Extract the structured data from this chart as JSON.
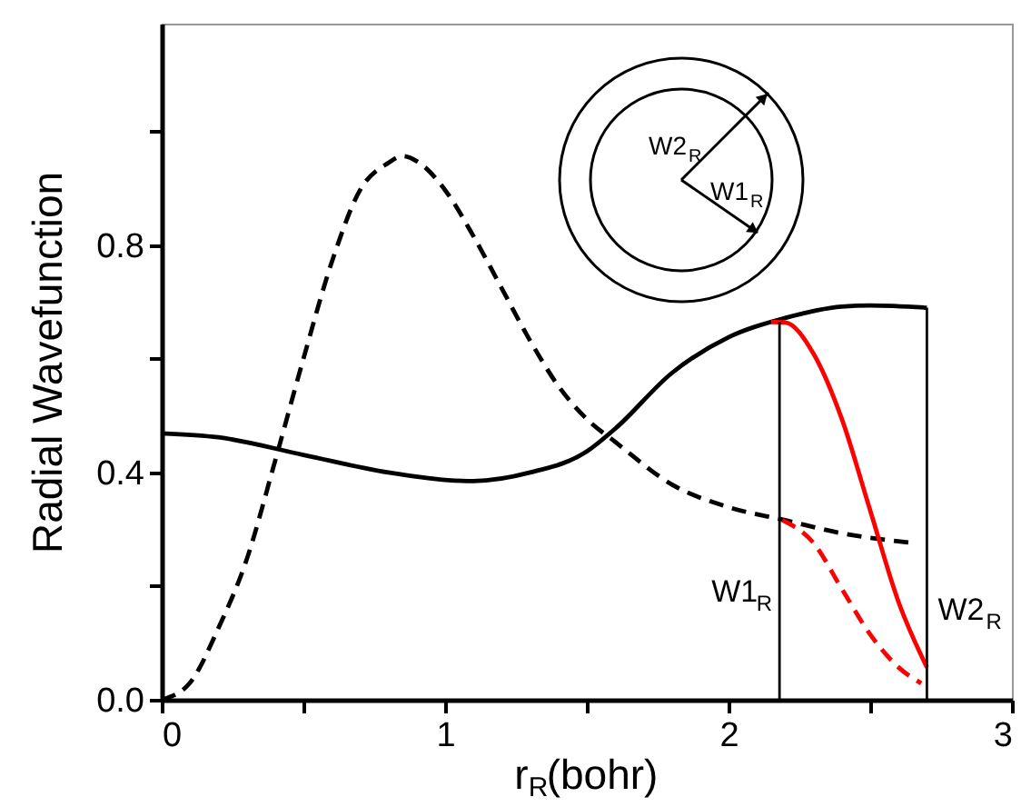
{
  "chart_data": {
    "type": "line",
    "xlabel": "r$_{R}$(bohr)",
    "ylabel": "Radial Wavefunction",
    "xlim": [
      0,
      3
    ],
    "xticks": [
      0,
      {
        "value": 0.5,
        "label": null
      },
      1,
      {
        "value": 1.5,
        "label": null
      },
      2,
      {
        "value": 2.5,
        "label": null
      },
      3
    ],
    "ylim": [
      0,
      1.19
    ],
    "yticks": [
      {
        "value": 0,
        "label": "0.0"
      },
      {
        "value": 0.2,
        "label": null
      },
      0.4,
      {
        "value": 0.6,
        "label": null
      },
      0.8,
      {
        "value": 1.0,
        "label": null
      }
    ],
    "grid": false,
    "annotations": [
      "W2$_{R}$",
      "W1$_{R}$"
    ],
    "series": [
      {
        "color": "#000000",
        "line_style": "solid",
        "x": [
          0,
          0.2,
          0.5,
          0.8,
          1.0,
          1.1,
          1.3,
          1.5,
          1.6,
          1.8,
          2.0,
          2.2,
          2.4,
          2.5,
          2.7
        ],
        "values": [
          0.469,
          0.462,
          0.431,
          0.4,
          0.387,
          0.385,
          0.4,
          0.437,
          0.477,
          0.575,
          0.638,
          0.672,
          0.692,
          0.694,
          0.69
        ]
      },
      {
        "color": "#000000",
        "line_style": "dashed",
        "x": [
          0,
          0.1,
          0.2,
          0.3,
          0.4,
          0.5,
          0.6,
          0.7,
          0.8,
          0.85,
          0.9,
          1.0,
          1.1,
          1.2,
          1.3,
          1.4,
          1.5,
          1.6,
          1.8,
          2.0,
          2.2,
          2.4,
          2.65
        ],
        "values": [
          0,
          0.03,
          0.126,
          0.247,
          0.42,
          0.6,
          0.77,
          0.897,
          0.945,
          0.957,
          0.948,
          0.897,
          0.816,
          0.724,
          0.632,
          0.552,
          0.494,
          0.454,
          0.379,
          0.339,
          0.316,
          0.293,
          0.276
        ]
      },
      {
        "color": "#ff0000",
        "line_style": "solid",
        "x": [
          2.15,
          2.2,
          2.3,
          2.4,
          2.5,
          2.6,
          2.7
        ],
        "values": [
          0.665,
          0.664,
          0.609,
          0.494,
          0.333,
          0.172,
          0.057
        ]
      },
      {
        "color": "#ff0000",
        "line_style": "dashed",
        "x": [
          2.19,
          2.3,
          2.4,
          2.5,
          2.6,
          2.68
        ],
        "values": [
          0.316,
          0.276,
          0.195,
          0.115,
          0.057,
          0.029
        ]
      },
      {
        "name": "W1$_{R}$",
        "color": "#000000",
        "line_style": "solid",
        "x": [
          2.18,
          2.18
        ],
        "values": [
          0,
          0.665
        ]
      },
      {
        "name": "W2$_{R}$",
        "color": "#000000",
        "line_style": "solid",
        "x": [
          2.7,
          2.7
        ],
        "values": [
          0,
          0.69
        ]
      }
    ]
  }
}
